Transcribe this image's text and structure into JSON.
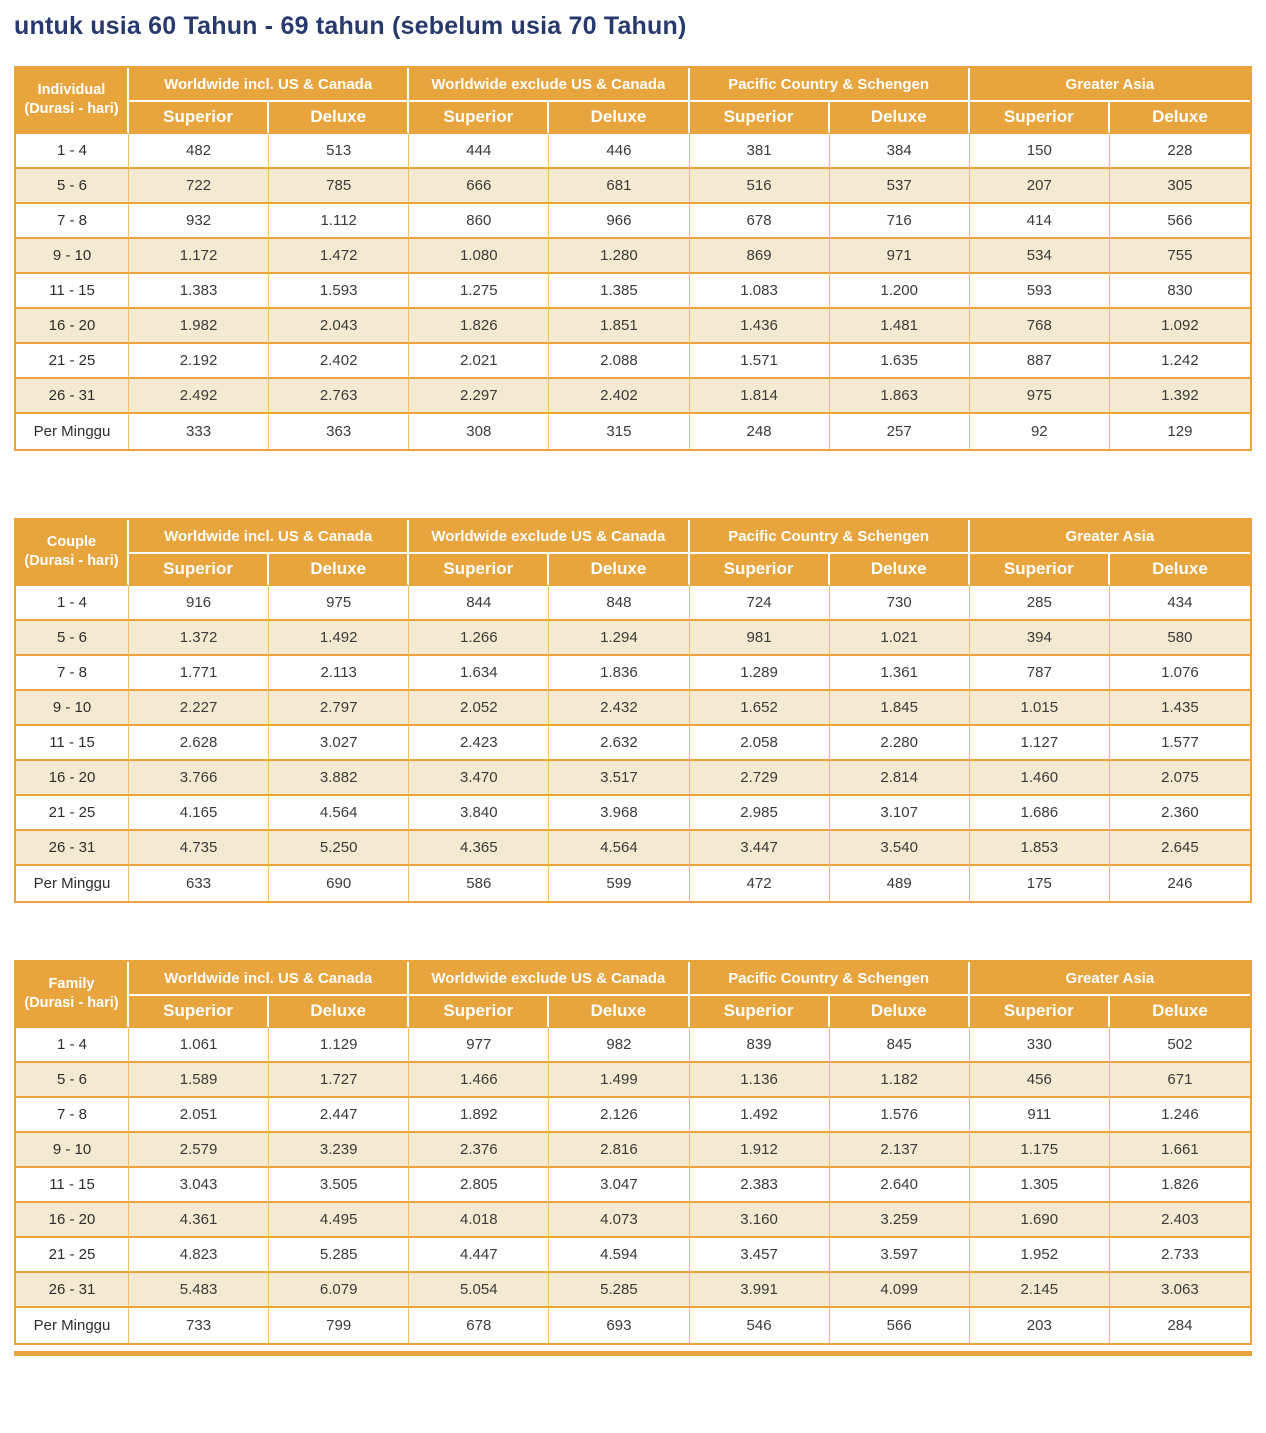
{
  "page": {
    "title": "untuk usia 60 Tahun - 69 tahun (sebelum usia 70 Tahun)"
  },
  "colors": {
    "header_orange": "#E8A53E",
    "row_stripe_beige": "#F3EAD1",
    "border_amber": "#EBA43C",
    "border_amber_light": "#F4BE62",
    "title_navy": "#283A6D",
    "cell_text": "#3B3B3B"
  },
  "column_groups": [
    "Worldwide incl. US & Canada",
    "Worldwide exclude US & Canada",
    "Pacific Country & Schengen",
    "Greater Asia"
  ],
  "sub_headers": [
    "Superior",
    "Deluxe"
  ],
  "tables": [
    {
      "category": "Individual",
      "duration_caption": "(Durasi - hari)",
      "rows": [
        {
          "label": "1 - 4",
          "values": [
            "482",
            "513",
            "444",
            "446",
            "381",
            "384",
            "150",
            "228"
          ]
        },
        {
          "label": "5 - 6",
          "values": [
            "722",
            "785",
            "666",
            "681",
            "516",
            "537",
            "207",
            "305"
          ]
        },
        {
          "label": "7 - 8",
          "values": [
            "932",
            "1.112",
            "860",
            "966",
            "678",
            "716",
            "414",
            "566"
          ]
        },
        {
          "label": "9 - 10",
          "values": [
            "1.172",
            "1.472",
            "1.080",
            "1.280",
            "869",
            "971",
            "534",
            "755"
          ]
        },
        {
          "label": "11 - 15",
          "values": [
            "1.383",
            "1.593",
            "1.275",
            "1.385",
            "1.083",
            "1.200",
            "593",
            "830"
          ]
        },
        {
          "label": "16 - 20",
          "values": [
            "1.982",
            "2.043",
            "1.826",
            "1.851",
            "1.436",
            "1.481",
            "768",
            "1.092"
          ]
        },
        {
          "label": "21 - 25",
          "values": [
            "2.192",
            "2.402",
            "2.021",
            "2.088",
            "1.571",
            "1.635",
            "887",
            "1.242"
          ]
        },
        {
          "label": "26 - 31",
          "values": [
            "2.492",
            "2.763",
            "2.297",
            "2.402",
            "1.814",
            "1.863",
            "975",
            "1.392"
          ]
        },
        {
          "label": "Per Minggu",
          "values": [
            "333",
            "363",
            "308",
            "315",
            "248",
            "257",
            "92",
            "129"
          ]
        }
      ]
    },
    {
      "category": "Couple",
      "duration_caption": "(Durasi - hari)",
      "rows": [
        {
          "label": "1 - 4",
          "values": [
            "916",
            "975",
            "844",
            "848",
            "724",
            "730",
            "285",
            "434"
          ]
        },
        {
          "label": "5 - 6",
          "values": [
            "1.372",
            "1.492",
            "1.266",
            "1.294",
            "981",
            "1.021",
            "394",
            "580"
          ]
        },
        {
          "label": "7 - 8",
          "values": [
            "1.771",
            "2.113",
            "1.634",
            "1.836",
            "1.289",
            "1.361",
            "787",
            "1.076"
          ]
        },
        {
          "label": "9 - 10",
          "values": [
            "2.227",
            "2.797",
            "2.052",
            "2.432",
            "1.652",
            "1.845",
            "1.015",
            "1.435"
          ]
        },
        {
          "label": "11 - 15",
          "values": [
            "2.628",
            "3.027",
            "2.423",
            "2.632",
            "2.058",
            "2.280",
            "1.127",
            "1.577"
          ]
        },
        {
          "label": "16 - 20",
          "values": [
            "3.766",
            "3.882",
            "3.470",
            "3.517",
            "2.729",
            "2.814",
            "1.460",
            "2.075"
          ]
        },
        {
          "label": "21 - 25",
          "values": [
            "4.165",
            "4.564",
            "3.840",
            "3.968",
            "2.985",
            "3.107",
            "1.686",
            "2.360"
          ]
        },
        {
          "label": "26 - 31",
          "values": [
            "4.735",
            "5.250",
            "4.365",
            "4.564",
            "3.447",
            "3.540",
            "1.853",
            "2.645"
          ]
        },
        {
          "label": "Per Minggu",
          "values": [
            "633",
            "690",
            "586",
            "599",
            "472",
            "489",
            "175",
            "246"
          ]
        }
      ]
    },
    {
      "category": "Family",
      "duration_caption": "(Durasi - hari)",
      "rows": [
        {
          "label": "1 - 4",
          "values": [
            "1.061",
            "1.129",
            "977",
            "982",
            "839",
            "845",
            "330",
            "502"
          ]
        },
        {
          "label": "5 - 6",
          "values": [
            "1.589",
            "1.727",
            "1.466",
            "1.499",
            "1.136",
            "1.182",
            "456",
            "671"
          ]
        },
        {
          "label": "7 - 8",
          "values": [
            "2.051",
            "2.447",
            "1.892",
            "2.126",
            "1.492",
            "1.576",
            "911",
            "1.246"
          ]
        },
        {
          "label": "9 - 10",
          "values": [
            "2.579",
            "3.239",
            "2.376",
            "2.816",
            "1.912",
            "2.137",
            "1.175",
            "1.661"
          ]
        },
        {
          "label": "11 - 15",
          "values": [
            "3.043",
            "3.505",
            "2.805",
            "3.047",
            "2.383",
            "2.640",
            "1.305",
            "1.826"
          ]
        },
        {
          "label": "16 - 20",
          "values": [
            "4.361",
            "4.495",
            "4.018",
            "4.073",
            "3.160",
            "3.259",
            "1.690",
            "2.403"
          ]
        },
        {
          "label": "21 - 25",
          "values": [
            "4.823",
            "5.285",
            "4.447",
            "4.594",
            "3.457",
            "3.597",
            "1.952",
            "2.733"
          ]
        },
        {
          "label": "26 - 31",
          "values": [
            "5.483",
            "6.079",
            "5.054",
            "5.285",
            "3.991",
            "4.099",
            "2.145",
            "3.063"
          ]
        },
        {
          "label": "Per Minggu",
          "values": [
            "733",
            "799",
            "678",
            "693",
            "546",
            "566",
            "203",
            "284"
          ]
        }
      ]
    }
  ]
}
